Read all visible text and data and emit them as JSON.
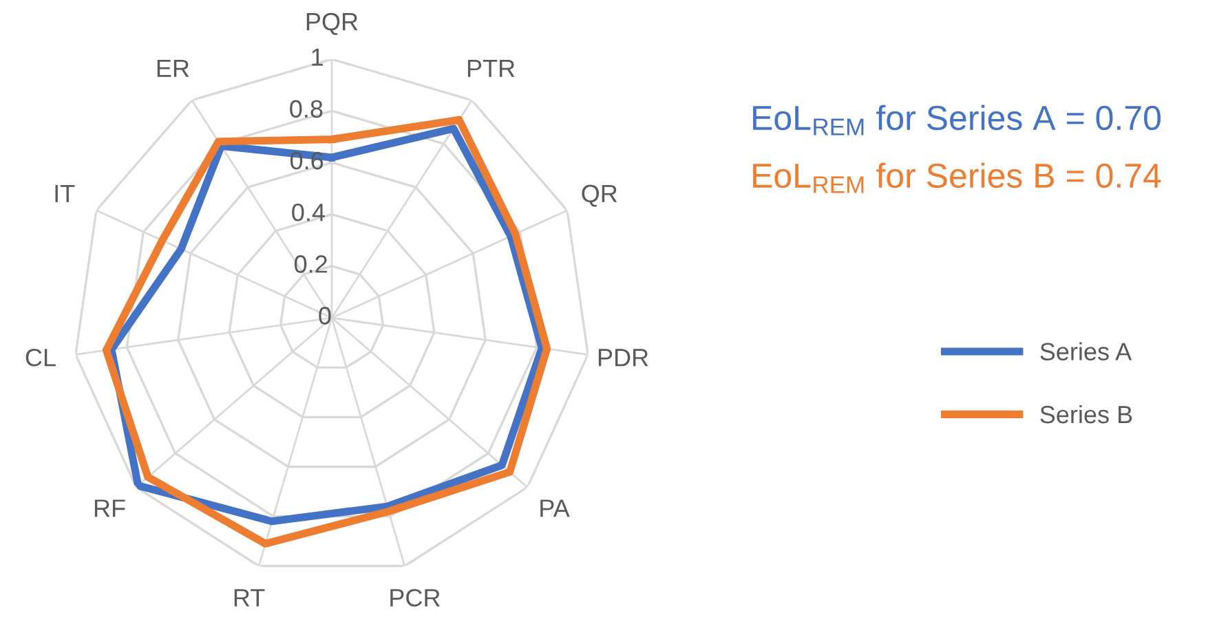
{
  "chart_data": {
    "type": "radar",
    "categories": [
      "PQR",
      "PTR",
      "QR",
      "PDR",
      "PA",
      "PCR",
      "RT",
      "RF",
      "CL",
      "IT",
      "ER"
    ],
    "series": [
      {
        "name": "Series A",
        "color": "#4472c4",
        "values": [
          0.62,
          0.87,
          0.76,
          0.82,
          0.87,
          0.76,
          0.82,
          0.99,
          0.86,
          0.64,
          0.79
        ]
      },
      {
        "name": "Series B",
        "color": "#ed7d31",
        "values": [
          0.69,
          0.91,
          0.78,
          0.84,
          0.91,
          0.78,
          0.91,
          0.94,
          0.88,
          0.72,
          0.81
        ]
      }
    ],
    "ylim": [
      0,
      1
    ],
    "yticks": [
      0,
      0.2,
      0.4,
      0.6,
      0.8,
      1
    ],
    "grid": true,
    "legend": "right",
    "marker": "none",
    "line_style": "solid",
    "annotations": [
      "EoL$_{REM}$ for Series A = 0.70",
      "EoL$_{REM}$ for Series B = 0.74"
    ]
  }
}
